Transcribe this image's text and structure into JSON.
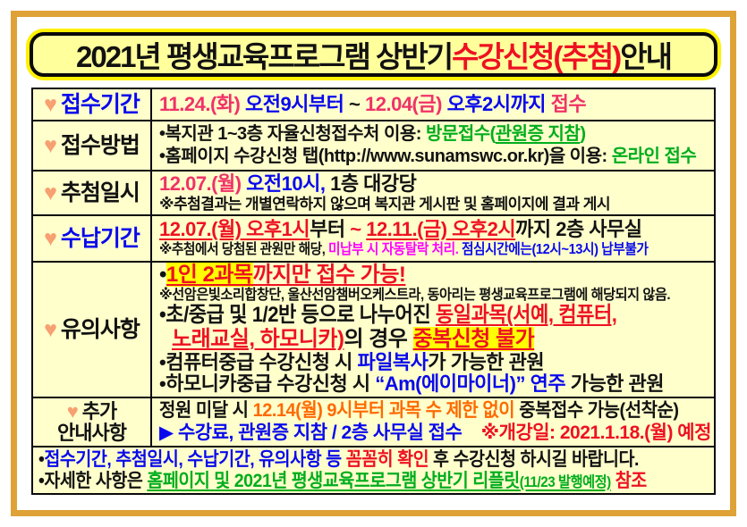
{
  "palette": {
    "black": "#121212",
    "blue": "#0909ec",
    "rose": "#f03267",
    "red": "#ee1122",
    "green": "#00ad1d",
    "orange": "#ff6a00",
    "magenta": "#ff00ff",
    "heart": "#f7a071",
    "frame": "#dfa237",
    "cell_bg": "#ffffcc",
    "title_bg": "#ffff9c",
    "title_ring": "#fff100",
    "highlight": "#ffff00"
  },
  "title": {
    "segments": [
      {
        "t": "2021년 평생교육프로그램 상반기 ",
        "c": "black"
      },
      {
        "t": "수강신청(추첨)",
        "c": "red"
      },
      {
        "t": " 안내",
        "c": "black"
      }
    ]
  },
  "rows": [
    {
      "name": "reception-period",
      "label": {
        "text": "접수기간",
        "color": "blue",
        "heart": true
      },
      "lines": [
        {
          "size": "lg",
          "segments": [
            {
              "t": "11.24.(화)",
              "c": "rose"
            },
            {
              "t": " 오전9시부터 ",
              "c": "blue"
            },
            {
              "t": "~",
              "c": "black"
            },
            {
              "t": " 12.04(금)",
              "c": "rose"
            },
            {
              "t": " 오후2시까지 ",
              "c": "blue"
            },
            {
              "t": "접수",
              "c": "rose"
            }
          ]
        }
      ]
    },
    {
      "name": "reception-method",
      "label": {
        "text": "접수방법",
        "color": "black",
        "heart": true
      },
      "lines": [
        {
          "size": "rg",
          "segments": [
            {
              "t": "•복지관 1~3층 자율신청접수처 이용: ",
              "c": "black"
            },
            {
              "t": "방문접수(",
              "c": "green"
            },
            {
              "t": "관원증 지참",
              "c": "green",
              "u": true
            },
            {
              "t": ")",
              "c": "green"
            }
          ]
        },
        {
          "size": "rg",
          "segments": [
            {
              "t": "•홈페이지 수강신청 탭(http://www.sunamswc.or.kr)을 이용: ",
              "c": "black"
            },
            {
              "t": "온라인 접수",
              "c": "green"
            }
          ]
        }
      ]
    },
    {
      "name": "lottery-datetime",
      "label": {
        "text": "추첨일시",
        "color": "black",
        "heart": true
      },
      "lines": [
        {
          "size": "lg",
          "segments": [
            {
              "t": "12.07.(월)",
              "c": "rose"
            },
            {
              "t": " 오전10시,",
              "c": "blue"
            },
            {
              "t": " 1층 대강당",
              "c": "black"
            }
          ]
        },
        {
          "size": "sm",
          "segments": [
            {
              "t": "※추첨결과는 개별연락하지 않으며 복지관 게시판 및 홈페이지에 결과 게시",
              "c": "black"
            }
          ]
        }
      ]
    },
    {
      "name": "payment-period",
      "label": {
        "text": "수납기간",
        "color": "blue",
        "heart": true
      },
      "lines": [
        {
          "size": "lg",
          "segments": [
            {
              "t": "12.07.(월) 오후1시",
              "c": "red",
              "u": true
            },
            {
              "t": "부터",
              "c": "black"
            },
            {
              "t": " ~ ",
              "c": "red"
            },
            {
              "t": "12.11.(금) 오후2시",
              "c": "red",
              "u": true
            },
            {
              "t": "까지 2층 사무실",
              "c": "black"
            }
          ]
        },
        {
          "size": "xs",
          "cond": 0.92,
          "segments": [
            {
              "t": "※추첨에서 당첨된 관원만 해당, ",
              "c": "black"
            },
            {
              "t": "미납부 시 자동탈락 처리.",
              "c": "magenta"
            },
            {
              "t": " 점심시간에는(12시~13시) 납부불가",
              "c": "blue"
            }
          ]
        }
      ]
    },
    {
      "name": "notes",
      "label": {
        "text": "유의사항",
        "color": "black",
        "heart": true
      },
      "lines": [
        {
          "size": "xl",
          "segments": [
            {
              "t": "•",
              "c": "black"
            },
            {
              "t": "1인 2과목",
              "c": "red",
              "u": true,
              "h": true
            },
            {
              "t": "까지만 접수 가능!",
              "c": "red",
              "u": true
            }
          ]
        },
        {
          "size": "xs",
          "cond": 0.95,
          "segments": [
            {
              "t": "※선암은빛소리합창단, 울산선암챔버오케스트라, 동아리는 평생교육프로그램에 해당되지 않음.",
              "c": "black"
            }
          ]
        },
        {
          "size": "xl",
          "cond": 0.92,
          "segments": [
            {
              "t": "•초/중급 및 1/2반 등으로 나누어진 ",
              "c": "black"
            },
            {
              "t": "동일과목(서예, 컴퓨터,",
              "c": "red",
              "u": true
            }
          ]
        },
        {
          "size": "xl",
          "ind": 14,
          "segments": [
            {
              "t": "노래교실, 하모니카)",
              "c": "red",
              "u": true
            },
            {
              "t": "의 경우 ",
              "c": "black"
            },
            {
              "t": "중복신청 불가",
              "c": "red",
              "u": true,
              "h": true
            }
          ]
        },
        {
          "size": "lg",
          "segments": [
            {
              "t": "•컴퓨터중급 수강신청 시 ",
              "c": "black"
            },
            {
              "t": "파일복사",
              "c": "blue"
            },
            {
              "t": "가 가능한 관원",
              "c": "black"
            }
          ]
        },
        {
          "size": "lg",
          "segments": [
            {
              "t": "•하모니카중급 수강신청 시 ",
              "c": "black"
            },
            {
              "t": "“Am(에이마이너)” 연주",
              "c": "blue"
            },
            {
              "t": " 가능한 관원",
              "c": "black"
            }
          ]
        }
      ]
    },
    {
      "name": "additional-guide",
      "label": {
        "text": "추가\n안내사항",
        "color": "black",
        "heart": true
      },
      "lines": [
        {
          "size": "md",
          "cond": 0.95,
          "segments": [
            {
              "t": "정원 미달 시 ",
              "c": "black"
            },
            {
              "t": "12.14(월) 9시부터 과목 수 제한 없이 ",
              "c": "orange"
            },
            {
              "t": "중복접수 가능(선착순)",
              "c": "black"
            }
          ]
        },
        {
          "size": "md",
          "segments": [
            {
              "t": "▶ 수강료, 관원증 지참 / 2층 사무실 접수",
              "c": "blue"
            },
            {
              "t": "    ※개강일: 2021.1.18.(월) 예정",
              "c": "red"
            }
          ]
        }
      ]
    }
  ],
  "footer": {
    "lines": [
      {
        "size": "md",
        "cond": 0.93,
        "segments": [
          {
            "t": "•",
            "c": "black"
          },
          {
            "t": "접수기간, 추첨일시, 수납기간, 유의사항 등 ",
            "c": "blue"
          },
          {
            "t": "꼼꼼히 확인",
            "c": "red"
          },
          {
            "t": " 후 수강신청 하시길 바랍니다.",
            "c": "black"
          }
        ]
      },
      {
        "size": "md",
        "cond": 0.93,
        "segments": [
          {
            "t": "•자세한 사항은 ",
            "c": "black"
          },
          {
            "t": "홈페이지 및 2021년 평생교육프로그램 상반기 리플릿",
            "c": "green",
            "u": true
          },
          {
            "t": "(11/23 발행예정)",
            "c": "green",
            "u": true,
            "sz": "small"
          },
          {
            "t": " 참조",
            "c": "red"
          }
        ]
      }
    ]
  }
}
